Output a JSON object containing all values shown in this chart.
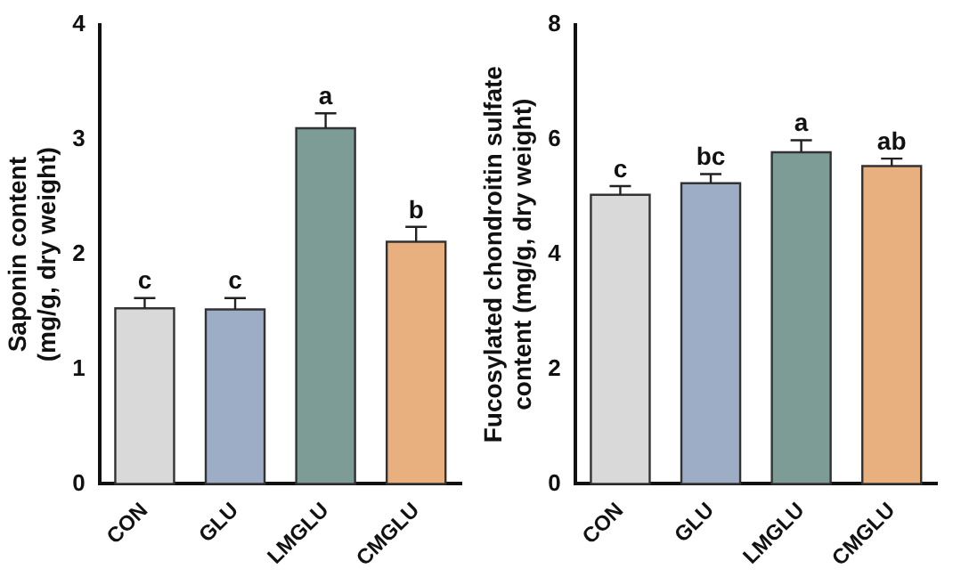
{
  "chart_data": [
    {
      "type": "bar",
      "ylabel": "Saponin content\n(mg/g, dry weight)",
      "categories": [
        "CON",
        "GLU",
        "LMGLU",
        "CMGLU"
      ],
      "values": [
        1.53,
        1.52,
        3.1,
        2.11
      ],
      "errors": [
        0.09,
        0.1,
        0.13,
        0.13
      ],
      "colors": [
        "#d9d9d9",
        "#9dadc6",
        "#7d9c95",
        "#e8b07f"
      ],
      "ylim": [
        0,
        4
      ],
      "yticks": [
        0,
        1,
        2,
        3,
        4
      ],
      "grid": false,
      "annotations": [
        {
          "text": "c",
          "x": "CON",
          "y": 1.62
        },
        {
          "text": "c",
          "x": "GLU",
          "y": 1.62
        },
        {
          "text": "a",
          "x": "LMGLU",
          "y": 3.23
        },
        {
          "text": "b",
          "x": "CMGLU",
          "y": 2.24
        }
      ]
    },
    {
      "type": "bar",
      "ylabel": "Fucosylated chondroitin sulfate\ncontent (mg/g, dry weight)",
      "categories": [
        "CON",
        "GLU",
        "LMGLU",
        "CMGLU"
      ],
      "values": [
        5.04,
        5.24,
        5.78,
        5.54
      ],
      "errors": [
        0.15,
        0.16,
        0.21,
        0.13
      ],
      "colors": [
        "#d9d9d9",
        "#9dadc6",
        "#7d9c95",
        "#e8b07f"
      ],
      "ylim": [
        0,
        8
      ],
      "yticks": [
        0,
        2,
        4,
        6,
        8
      ],
      "grid": false,
      "annotations": [
        {
          "text": "c",
          "x": "CON",
          "y": 5.19
        },
        {
          "text": "bc",
          "x": "GLU",
          "y": 5.4
        },
        {
          "text": "a",
          "x": "LMGLU",
          "y": 5.99
        },
        {
          "text": "ab",
          "x": "CMGLU",
          "y": 5.67
        }
      ]
    }
  ]
}
